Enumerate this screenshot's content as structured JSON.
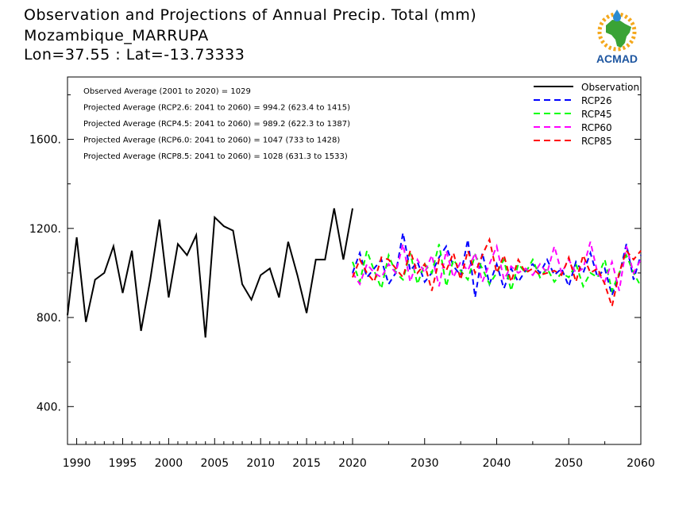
{
  "title_lines": [
    "Observation and Projections of Annual Precip. Total (mm)",
    "Mozambique_MARRUPA",
    "Lon=37.55 : Lat=-13.73333"
  ],
  "logo": {
    "text": "ACMAD",
    "icon": "africa-map-logo"
  },
  "chart_data": {
    "type": "line",
    "title": "Observation and Projections of Annual Precip. Total (mm)",
    "xlabel": "",
    "ylabel": "",
    "xlim": [
      1989,
      2060
    ],
    "ylim": [
      230,
      1880
    ],
    "y_ticks": [
      400,
      800,
      1200,
      1600
    ],
    "y_tick_labels": [
      "400.",
      "800.",
      "1200.",
      "1600."
    ],
    "x_ticks_left": [
      1990,
      1995,
      2000,
      2005,
      2010,
      2015,
      2020
    ],
    "x_ticks_right": [
      2030,
      2040,
      2050,
      2060
    ],
    "x_axis_break": 2020,
    "annotations": [
      "Observed Average (2001 to 2020) = 1029",
      "Projected Average (RCP2.6: 2041 to 2060) = 994.2 (623.4 to 1415)",
      "Projected Average (RCP4.5: 2041 to 2060) = 989.2 (622.3 to 1387)",
      "Projected Average (RCP6.0: 2041 to 2060) = 1047 (733 to 1428)",
      "Projected Average (RCP8.5: 2041 to 2060) = 1028 (631.3 to 1533)"
    ],
    "legend_position": "top-right",
    "observation": {
      "name": "Observation",
      "color": "#000000",
      "x": [
        1989,
        1990,
        1991,
        1992,
        1993,
        1994,
        1995,
        1996,
        1997,
        1998,
        1999,
        2000,
        2001,
        2002,
        2003,
        2004,
        2005,
        2006,
        2007,
        2008,
        2009,
        2010,
        2011,
        2012,
        2013,
        2014,
        2015,
        2016,
        2017,
        2018,
        2019,
        2020
      ],
      "values": [
        810,
        1160,
        780,
        970,
        1000,
        1120,
        910,
        1100,
        740,
        970,
        1240,
        890,
        1130,
        1080,
        1170,
        710,
        1250,
        1210,
        1190,
        950,
        880,
        990,
        1020,
        890,
        1140,
        990,
        820,
        1060,
        1060,
        1290,
        1060,
        1290
      ]
    },
    "series": [
      {
        "name": "RCP26",
        "color": "#0000ff",
        "x": [
          2020,
          2021,
          2022,
          2023,
          2024,
          2025,
          2026,
          2027,
          2028,
          2029,
          2030,
          2031,
          2032,
          2033,
          2034,
          2035,
          2036,
          2037,
          2038,
          2039,
          2040,
          2041,
          2042,
          2043,
          2044,
          2045,
          2046,
          2047,
          2048,
          2049,
          2050,
          2051,
          2052,
          2053,
          2054,
          2055,
          2056,
          2057,
          2058,
          2059,
          2060
        ],
        "values": [
          1000,
          1090,
          980,
          1020,
          1060,
          950,
          1000,
          1180,
          1010,
          1050,
          960,
          1000,
          1070,
          1120,
          1030,
          990,
          1150,
          890,
          1090,
          950,
          1040,
          930,
          1020,
          960,
          1010,
          1040,
          1000,
          1060,
          990,
          1020,
          940,
          1050,
          1000,
          1090,
          980,
          1020,
          900,
          990,
          1130,
          970,
          1080
        ]
      },
      {
        "name": "RCP45",
        "color": "#00ff00",
        "x": [
          2020,
          2021,
          2022,
          2023,
          2024,
          2025,
          2026,
          2027,
          2028,
          2029,
          2030,
          2031,
          2032,
          2033,
          2034,
          2035,
          2036,
          2037,
          2038,
          2039,
          2040,
          2041,
          2042,
          2043,
          2044,
          2045,
          2046,
          2047,
          2048,
          2049,
          2050,
          2051,
          2052,
          2053,
          2054,
          2055,
          2056,
          2057,
          2058,
          2059,
          2060
        ],
        "values": [
          1050,
          960,
          1100,
          1010,
          930,
          1080,
          1000,
          970,
          1090,
          950,
          1040,
          1000,
          1130,
          940,
          1060,
          1010,
          970,
          1080,
          1020,
          950,
          1000,
          1060,
          920,
          1040,
          1000,
          1060,
          980,
          1020,
          960,
          1000,
          980,
          1040,
          940,
          1000,
          980,
          1060,
          920,
          1000,
          1080,
          1000,
          940
        ]
      },
      {
        "name": "RCP60",
        "color": "#ff00ff",
        "x": [
          2020,
          2021,
          2022,
          2023,
          2024,
          2025,
          2026,
          2027,
          2028,
          2029,
          2030,
          2031,
          2032,
          2033,
          2034,
          2035,
          2036,
          2037,
          2038,
          2039,
          2040,
          2041,
          2042,
          2043,
          2044,
          2045,
          2046,
          2047,
          2048,
          2049,
          2050,
          2051,
          2052,
          2053,
          2054,
          2055,
          2056,
          2057,
          2058,
          2059,
          2060
        ],
        "values": [
          1000,
          950,
          1040,
          1000,
          980,
          1040,
          1000,
          1130,
          960,
          1060,
          1000,
          1080,
          940,
          1100,
          980,
          1050,
          1010,
          1090,
          960,
          1040,
          1120,
          970,
          1030,
          1000,
          1020,
          990,
          1040,
          1000,
          1120,
          1000,
          1060,
          1000,
          1020,
          1140,
          1000,
          960,
          1050,
          920,
          1120,
          1000,
          1060
        ]
      },
      {
        "name": "RCP85",
        "color": "#ff0000",
        "x": [
          2020,
          2021,
          2022,
          2023,
          2024,
          2025,
          2026,
          2027,
          2028,
          2029,
          2030,
          2031,
          2032,
          2033,
          2034,
          2035,
          2036,
          2037,
          2038,
          2039,
          2040,
          2041,
          2042,
          2043,
          2044,
          2045,
          2046,
          2047,
          2048,
          2049,
          2050,
          2051,
          2052,
          2053,
          2054,
          2055,
          2056,
          2057,
          2058,
          2059,
          2060
        ],
        "values": [
          980,
          1060,
          1000,
          960,
          1070,
          1060,
          1020,
          980,
          1100,
          1000,
          1040,
          920,
          1060,
          1010,
          1090,
          970,
          1100,
          1000,
          1080,
          1150,
          1000,
          1080,
          960,
          1060,
          1000,
          1020,
          990,
          1000,
          1010,
          990,
          1070,
          960,
          1080,
          1000,
          1020,
          950,
          850,
          1000,
          1100,
          1060,
          1100
        ]
      }
    ]
  }
}
